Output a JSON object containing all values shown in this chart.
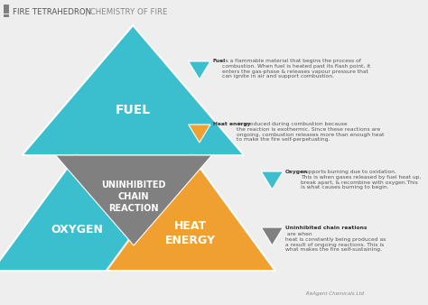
{
  "title1": "FIRE TETRAHEDRON",
  "title2": "| CHEMISTRY OF FIRE",
  "bg_color": "#eeeeee",
  "teal": "#3bbfce",
  "orange": "#f0a030",
  "gray": "#808080",
  "white": "#ffffff",
  "credit": "ReAgent Chemicals Ltd",
  "fuel_label": "FUEL",
  "oxygen_label": "OXYGEN",
  "heat_label": "HEAT\nENERGY",
  "chain_label": "UNINHIBITED\nCHAIN\nREACTION",
  "ann1_bold": "Fuel",
  "ann1_text": " is a flammable material that begins the process of\ncombustion. When fuel is heated past its flash point, it\nenters the gas-phase & releases vapour pressure that\ncan ignite in air and support combustion.",
  "ann2_bold": "Heat energy",
  "ann2_text": " is produced during combustion because\nthe reaction is exothermic. Since these reactions are\nongoing, combustion releases more than enough heat\nto make the fire self-perpetuating.",
  "ann3_bold": "Oxygen",
  "ann3_text": " supports burning due to oxidation.\nThis is when gases released by fuel heat up,\nbreak apart, & recombine with oxygen.This\nis what causes burning to begin.",
  "ann4_bold": "Uninhibited chain reations",
  "ann4_text": " are when\nheat is constantly being produced as\na result of ongoing reactions. This is\nwhat makes the fire self-sustaining."
}
